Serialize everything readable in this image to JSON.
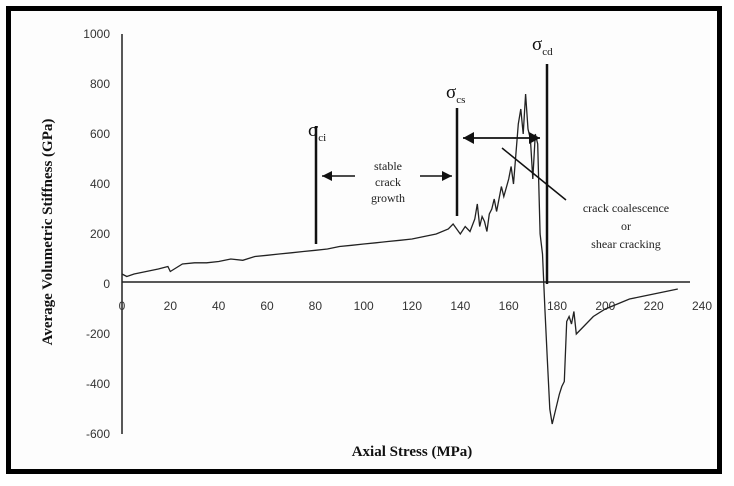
{
  "chart_data": {
    "type": "line",
    "title": "",
    "xlabel": "Axial Stress (MPa)",
    "ylabel": "Average Volumetric Stiffness (GPa)",
    "xlim": [
      0,
      240
    ],
    "ylim": [
      -600,
      1000
    ],
    "xticks": [
      0,
      20,
      40,
      60,
      80,
      100,
      120,
      140,
      160,
      180,
      200,
      220,
      240
    ],
    "yticks": [
      -600,
      -400,
      -200,
      0,
      200,
      400,
      600,
      800,
      1000
    ],
    "xtick_labels": [
      "0",
      "20",
      "40",
      "60",
      "80",
      "100",
      "120",
      "140",
      "160",
      "180",
      "200",
      "220",
      "240"
    ],
    "ytick_labels": [
      "-600",
      "-400",
      "-200",
      "0",
      "200",
      "400",
      "600",
      "800",
      "1000"
    ],
    "grid": false,
    "line_color": "#222222",
    "series": [
      {
        "name": "",
        "x": [
          0,
          2,
          5,
          10,
          15,
          19,
          20,
          25,
          30,
          35,
          40,
          45,
          50,
          55,
          60,
          65,
          70,
          75,
          80,
          85,
          90,
          95,
          100,
          105,
          110,
          115,
          120,
          125,
          130,
          135,
          137,
          140,
          142,
          144,
          146,
          147,
          148,
          149,
          150,
          151,
          152,
          153,
          154,
          155,
          157,
          158,
          160,
          161,
          162,
          163,
          164,
          165,
          166,
          167,
          168,
          169,
          170,
          171,
          172,
          173,
          174,
          175,
          176,
          177,
          178,
          179,
          180,
          181,
          182,
          183,
          184,
          185,
          186,
          187,
          188,
          190,
          195,
          200,
          205,
          210,
          215,
          220,
          225,
          230
        ],
        "y": [
          40,
          30,
          40,
          50,
          60,
          70,
          50,
          80,
          85,
          85,
          90,
          100,
          95,
          110,
          115,
          120,
          125,
          130,
          135,
          140,
          150,
          155,
          160,
          165,
          170,
          175,
          180,
          190,
          200,
          220,
          240,
          200,
          230,
          210,
          260,
          320,
          230,
          270,
          250,
          210,
          280,
          300,
          340,
          290,
          390,
          350,
          420,
          470,
          400,
          520,
          640,
          700,
          600,
          760,
          620,
          580,
          420,
          600,
          560,
          200,
          120,
          -100,
          -300,
          -500,
          -560,
          -520,
          -480,
          -440,
          -410,
          -390,
          -150,
          -130,
          -160,
          -110,
          -200,
          -180,
          -130,
          -100,
          -80,
          -60,
          -50,
          -40,
          -30,
          -20
        ]
      }
    ],
    "annotations": {
      "sigma": "σ",
      "ci_sub": "ci",
      "cs_sub": "cs",
      "cd_sub": "cd",
      "stable_1": "stable",
      "stable_2": "crack",
      "stable_3": "growth",
      "coal_1": "crack coalescence",
      "coal_2": "or",
      "coal_3": "shear cracking"
    },
    "markers": {
      "ci_x": 80,
      "cs_x": 138,
      "cd_x": 175
    }
  }
}
